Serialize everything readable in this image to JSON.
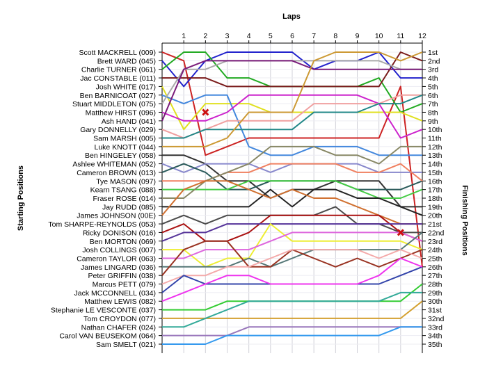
{
  "chart_data": {
    "type": "line",
    "title": "",
    "top_axis_title": "Laps",
    "left_axis_title": "Starting Positions",
    "right_axis_title": "Finishing Positions",
    "x": [
      0,
      1,
      2,
      3,
      4,
      5,
      6,
      7,
      8,
      9,
      10,
      11,
      12
    ],
    "x_tick_labels": [
      "1",
      "2",
      "3",
      "4",
      "5",
      "6",
      "7",
      "8",
      "9",
      "10",
      "11",
      "12"
    ],
    "ylim": [
      1,
      35
    ],
    "y_inverted": true,
    "grid": true,
    "start_labels": [
      "Scott MACKRELL (009)",
      "Brett WARD (045)",
      "Charlie TURNER (061)",
      "Jac CONSTABLE (011)",
      "Josh WHITE (017)",
      "Ben BARNICOAT (027)",
      "Stuart MIDDLETON (075)",
      "Matthew HIRST (096)",
      "Ash HAND (041)",
      "Gary DONNELLY (029)",
      "Sam MARSH (005)",
      "Luke KNOTT (044)",
      "Ben HINGELEY (058)",
      "Ashlee WHITEMAN (052)",
      "Cameron BROWN (013)",
      "Tye MASON (097)",
      "Kearn TSANG (088)",
      "Fraser ROSE (014)",
      "Jay RUDD (085)",
      "James JOHNSON (00E)",
      "Tom SHARPE-REYNOLDS (053)",
      "Ricky DONISON (016)",
      "Ben MORTON (069)",
      "Josh COLLINGS (007)",
      "Cameron TAYLOR (063)",
      "James LINGARD (036)",
      "Peter GRIFFIN (038)",
      "Marcus PETT (079)",
      "Jack MCCONNELL (034)",
      "Matthew LEWIS (082)",
      "Stephanie LE VESCONTE (037)",
      "Tom CROYDON (077)",
      "Nathan CHAFER (024)",
      "Carol VAN BEUSEKOM (064)",
      "Sam SMELT (021)"
    ],
    "finish_labels": [
      "1st",
      "2nd",
      "3rd",
      "4th",
      "5th",
      "6th",
      "7th",
      "8th",
      "9th",
      "10th",
      "11th",
      "12th",
      "13th",
      "14th",
      "15th",
      "16th",
      "17th",
      "18th",
      "19th",
      "20th",
      "21st",
      "22nd",
      "23rd",
      "24th",
      "25th",
      "26th",
      "27th",
      "28th",
      "29th",
      "30th",
      "31st",
      "32nd",
      "33rd",
      "34th",
      "35th"
    ],
    "series": [
      {
        "color": "#cc2222",
        "values": [
          1,
          2,
          13,
          12,
          11,
          11,
          11,
          11,
          11,
          11,
          11,
          5,
          26
        ]
      },
      {
        "color": "#2222cc",
        "values": [
          2,
          5,
          2,
          1,
          1,
          1,
          1,
          3,
          2,
          2,
          1,
          4,
          4
        ]
      },
      {
        "color": "#22aa22",
        "values": [
          3,
          1,
          1,
          4,
          4,
          5,
          5,
          5,
          5,
          5,
          4,
          8,
          7
        ]
      },
      {
        "color": "#7a1b1b",
        "values": [
          4,
          4,
          4,
          5,
          5,
          5,
          5,
          5,
          5,
          5,
          5,
          1,
          2
        ]
      },
      {
        "color": "#e0e020",
        "values": [
          5,
          10,
          7,
          7,
          7,
          8,
          8,
          8,
          8,
          8,
          8,
          8,
          9
        ]
      },
      {
        "color": "#4488dd",
        "values": [
          6,
          7,
          6,
          6,
          12,
          13,
          13,
          12,
          12,
          12,
          13,
          13,
          13
        ]
      },
      {
        "color": "#aaaaaa",
        "values": [
          7,
          3,
          3,
          2,
          2,
          2,
          2,
          2,
          2,
          2,
          2,
          3,
          3
        ]
      },
      {
        "color": "#cc22cc",
        "values": [
          8,
          9,
          9,
          8,
          6,
          6,
          6,
          6,
          6,
          6,
          7,
          11,
          10
        ]
      },
      {
        "color": "#7a1b7a",
        "values": [
          9,
          3,
          2,
          2,
          2,
          2,
          2,
          3,
          3,
          3,
          3,
          3,
          3
        ]
      },
      {
        "color": "#f0a0a0",
        "values": [
          10,
          11,
          10,
          9,
          9,
          9,
          9,
          7,
          7,
          7,
          7,
          6,
          6
        ]
      },
      {
        "color": "#228888",
        "values": [
          11,
          11,
          10,
          10,
          10,
          10,
          10,
          8,
          8,
          8,
          7,
          7,
          6
        ]
      },
      {
        "color": "#cc9933",
        "values": [
          12,
          12,
          12,
          11,
          8,
          8,
          8,
          2,
          1,
          1,
          1,
          2,
          1
        ]
      },
      {
        "color": "#333333",
        "values": [
          13,
          13,
          14,
          16,
          16,
          18,
          17,
          17,
          16,
          16,
          16,
          19,
          19
        ]
      },
      {
        "color": "#8888cc",
        "values": [
          14,
          15,
          14,
          14,
          14,
          15,
          14,
          14,
          14,
          14,
          15,
          15,
          15
        ]
      },
      {
        "color": "#2a5a5a",
        "values": [
          15,
          14,
          15,
          17,
          17,
          16,
          16,
          16,
          16,
          17,
          17,
          17,
          16
        ]
      },
      {
        "color": "#f08060",
        "values": [
          16,
          16,
          16,
          15,
          15,
          14,
          14,
          14,
          14,
          15,
          15,
          14,
          16
        ]
      },
      {
        "color": "#44cc44",
        "values": [
          17,
          17,
          17,
          17,
          16,
          16,
          16,
          16,
          16,
          17,
          18,
          18,
          17
        ]
      },
      {
        "color": "#888866",
        "values": [
          18,
          18,
          16,
          15,
          14,
          12,
          12,
          12,
          13,
          13,
          14,
          12,
          12
        ]
      },
      {
        "color": "#222222",
        "values": [
          19,
          19,
          19,
          19,
          19,
          17,
          19,
          17,
          17,
          18,
          18,
          19,
          20
        ]
      },
      {
        "color": "#d07030",
        "values": [
          20,
          17,
          16,
          16,
          17,
          18,
          17,
          18,
          18,
          19,
          20,
          21,
          21
        ]
      },
      {
        "color": "#4a4a4a",
        "values": [
          21,
          20,
          21,
          20,
          20,
          20,
          20,
          20,
          19,
          21,
          21,
          22,
          22
        ]
      },
      {
        "color": "#aa1111",
        "values": [
          22,
          21,
          23,
          23,
          22,
          20,
          20,
          20,
          20,
          20,
          20,
          22,
          23
        ]
      },
      {
        "color": "#553399",
        "values": [
          23,
          22,
          22,
          21,
          21,
          21,
          21,
          21,
          21,
          21,
          21,
          21,
          21
        ]
      },
      {
        "color": "#eeee33",
        "values": [
          24,
          24,
          26,
          25,
          25,
          21,
          23,
          23,
          23,
          23,
          23,
          23,
          24
        ]
      },
      {
        "color": "#dd66dd",
        "values": [
          25,
          25,
          24,
          24,
          24,
          23,
          22,
          22,
          22,
          22,
          22,
          22,
          23
        ]
      },
      {
        "color": "#557777",
        "values": [
          26,
          26,
          26,
          26,
          25,
          26,
          25,
          24,
          24,
          24,
          24,
          24,
          22
        ]
      },
      {
        "color": "#993322",
        "values": [
          27,
          24,
          23,
          23,
          26,
          26,
          24,
          25,
          26,
          25,
          26,
          25,
          24
        ]
      },
      {
        "color": "#f4aaaa",
        "values": [
          28,
          27,
          27,
          26,
          26,
          25,
          24,
          24,
          24,
          24,
          25,
          24,
          25
        ]
      },
      {
        "color": "#3344aa",
        "values": [
          29,
          27,
          28,
          28,
          28,
          28,
          28,
          28,
          28,
          28,
          28,
          27,
          26
        ]
      },
      {
        "color": "#ee33ee",
        "values": [
          30,
          29,
          28,
          27,
          27,
          28,
          28,
          28,
          28,
          28,
          27,
          25,
          26
        ]
      },
      {
        "color": "#33cc33",
        "values": [
          31,
          31,
          31,
          30,
          30,
          30,
          30,
          30,
          30,
          30,
          30,
          30,
          28
        ]
      },
      {
        "color": "#d4a030",
        "values": [
          32,
          32,
          32,
          32,
          32,
          32,
          32,
          32,
          32,
          32,
          32,
          32,
          30
        ]
      },
      {
        "color": "#33aa99",
        "values": [
          33,
          33,
          32,
          31,
          30,
          30,
          30,
          30,
          30,
          30,
          30,
          29,
          29
        ]
      },
      {
        "color": "#9977bb",
        "values": [
          34,
          34,
          34,
          34,
          33,
          33,
          33,
          33,
          33,
          33,
          33,
          33,
          33
        ]
      },
      {
        "color": "#3399ee",
        "values": [
          35,
          35,
          35,
          34,
          34,
          34,
          34,
          34,
          34,
          34,
          34,
          33,
          33
        ]
      }
    ],
    "markers": [
      {
        "lap": 2,
        "position": 8,
        "color": "#cc1111",
        "icon": "cross-icon"
      },
      {
        "lap": 11,
        "position": 22,
        "color": "#cc1111",
        "icon": "cross-icon"
      }
    ]
  }
}
